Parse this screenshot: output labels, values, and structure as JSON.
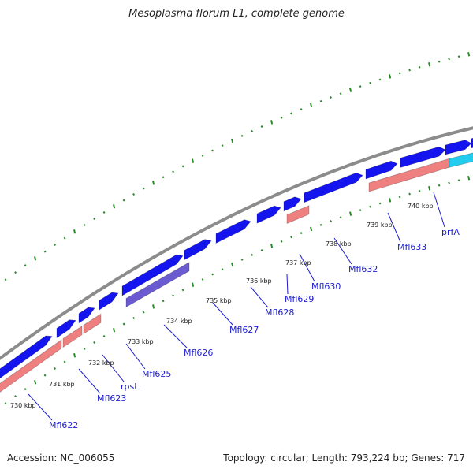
{
  "title": "Mesoplasma florum L1, complete genome",
  "footer": {
    "accession": "Accession: NC_006055",
    "summary": "Topology: circular; Length: 793,224 bp; Genes: 717"
  },
  "colors": {
    "backbone": "#8c8c8c",
    "cds_forward": "#1414ee",
    "rna": "#ee8080",
    "highlight_cds": "#6a5bd0",
    "other_feature": "#22ccee",
    "tick": "#2a8a2a",
    "label": "#1c1ccf"
  },
  "kbp_labels": [
    {
      "label": "730 kbp"
    },
    {
      "label": "731 kbp"
    },
    {
      "label": "732 kbp"
    },
    {
      "label": "733 kbp"
    },
    {
      "label": "734 kbp"
    },
    {
      "label": "735 kbp"
    },
    {
      "label": "736 kbp"
    },
    {
      "label": "737 kbp"
    },
    {
      "label": "738 kbp"
    },
    {
      "label": "739 kbp"
    },
    {
      "label": "740 kbp"
    }
  ],
  "gene_labels": [
    {
      "label": "Mfl622"
    },
    {
      "label": "Mfl623"
    },
    {
      "label": "rpsL"
    },
    {
      "label": "Mfl625"
    },
    {
      "label": "Mfl626"
    },
    {
      "label": "Mfl627"
    },
    {
      "label": "Mfl628"
    },
    {
      "label": "Mfl629"
    },
    {
      "label": "Mfl630"
    },
    {
      "label": "Mfl632"
    },
    {
      "label": "Mfl633"
    },
    {
      "label": "prfA"
    }
  ]
}
